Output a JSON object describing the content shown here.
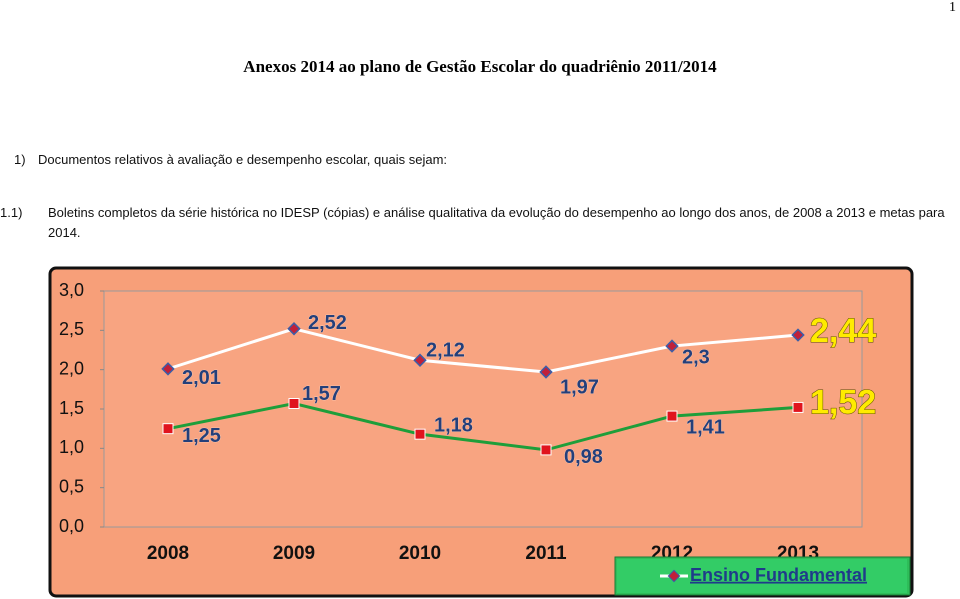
{
  "page_number": "1",
  "title": "Anexos 2014 ao plano de Gestão Escolar do quadriênio 2011/2014",
  "items": [
    {
      "marker": "1)",
      "text": "Documentos relativos à avaliação e desempenho escolar, quais sejam:"
    },
    {
      "marker": "1.1)",
      "text": "Boletins completos da série histórica no IDESP (cópias) e análise qualitativa da evolução do desempenho ao longo dos anos, de 2008 a 2013 e metas para 2014."
    }
  ],
  "chart_data": {
    "type": "line",
    "categories": [
      "2008",
      "2009",
      "2010",
      "2011",
      "2012",
      "2013"
    ],
    "ylim": [
      0,
      3
    ],
    "yticks": [
      {
        "value": 0,
        "label": "0,0"
      },
      {
        "value": 0.5,
        "label": "0,5"
      },
      {
        "value": 1,
        "label": "1,0"
      },
      {
        "value": 1.5,
        "label": "1,5"
      },
      {
        "value": 2,
        "label": "2,0"
      },
      {
        "value": 2.5,
        "label": "2,5"
      },
      {
        "value": 3,
        "label": "3,0"
      }
    ],
    "series": [
      {
        "name": "Ensino Fundamental",
        "color": "#ffffff",
        "values": [
          2.01,
          2.52,
          2.12,
          1.97,
          2.3,
          2.44
        ],
        "value_labels": [
          "2,01",
          "2,52",
          "2,12",
          "1,97",
          "2,3",
          "2,44"
        ]
      },
      {
        "color": "#1e9e3a",
        "values": [
          1.25,
          1.57,
          1.18,
          0.98,
          1.41,
          1.52
        ],
        "value_labels": [
          "1,25",
          "1,57",
          "1,18",
          "0,98",
          "1,41",
          "1,52"
        ]
      }
    ]
  }
}
